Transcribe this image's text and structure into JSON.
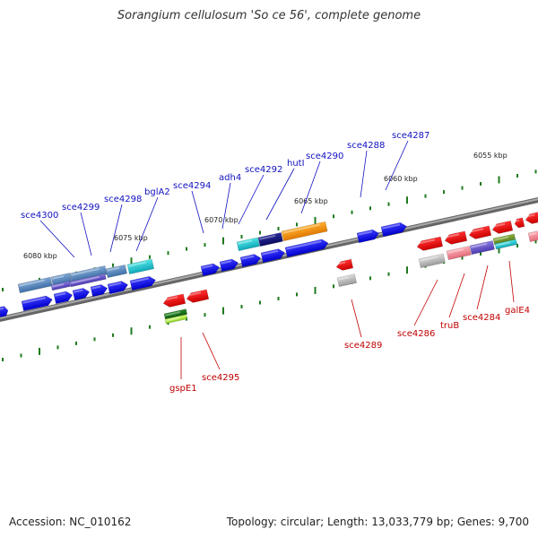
{
  "title": "Sorangium cellulosum 'So ce 56', complete genome",
  "footer": {
    "accession": "Accession: NC_010162",
    "summary": "Topology: circular; Length: 13,033,779 bp; Genes: 9,700"
  },
  "ticks": [
    "6080 kbp",
    "6075 kbp",
    "6070 kbp",
    "6065 kbp",
    "6060 kbp",
    "6055 kbp"
  ],
  "forward_labels": [
    "sce4300",
    "sce4299",
    "sce4298",
    "bglA2",
    "sce4294",
    "adh4",
    "sce4292",
    "hutI",
    "sce4290",
    "sce4288",
    "sce4287"
  ],
  "reverse_labels": [
    "gspE1",
    "sce4295",
    "sce4289",
    "sce4286",
    "truB",
    "sce4284",
    "galE4"
  ],
  "colors": {
    "forward_label": "#1010c0",
    "reverse_label": "#c00000",
    "forward_gene": "#1010ff",
    "reverse_gene": "#ff0000",
    "backbone": "#888888",
    "tick": "#1e7a1e"
  }
}
